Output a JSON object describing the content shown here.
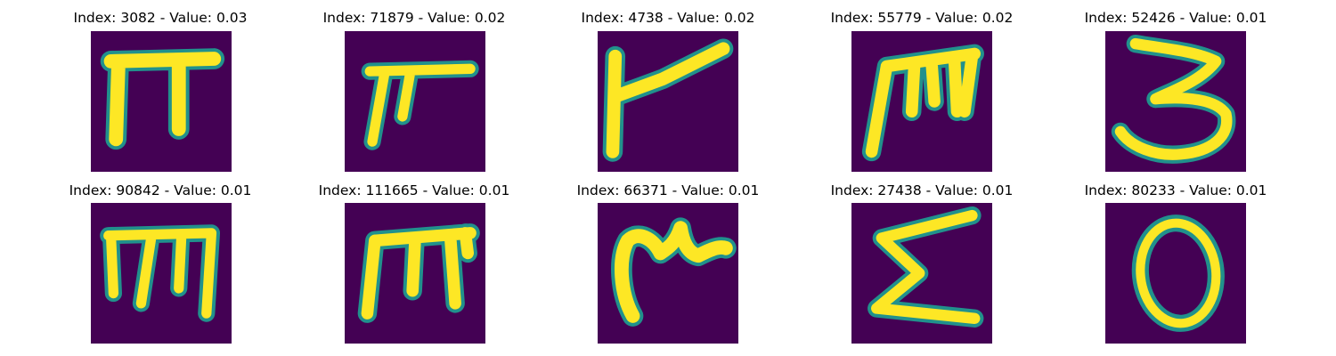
{
  "colors": {
    "background": "#440154",
    "stroke_halo": "#21918c",
    "stroke_core": "#fde725"
  },
  "panels": [
    {
      "title": "Index: 3082 - Value: 0.03",
      "glyph": "pi-shape"
    },
    {
      "title": "Index: 71879 - Value: 0.02",
      "glyph": "small-pi-shape"
    },
    {
      "title": "Index: 4738 - Value: 0.02",
      "glyph": "slanted-flag-shape"
    },
    {
      "title": "Index: 55779 - Value: 0.02",
      "glyph": "m-shape"
    },
    {
      "title": "Index: 52426 - Value: 0.01",
      "glyph": "three-shape"
    },
    {
      "title": "Index: 90842 - Value: 0.01",
      "glyph": "m-shape"
    },
    {
      "title": "Index: 111665 - Value: 0.01",
      "glyph": "m-shape"
    },
    {
      "title": "Index: 66371 - Value: 0.01",
      "glyph": "crown-shape"
    },
    {
      "title": "Index: 27438 - Value: 0.01",
      "glyph": "sigma-shape"
    },
    {
      "title": "Index: 80233 - Value: 0.01",
      "glyph": "zero-shape"
    }
  ]
}
